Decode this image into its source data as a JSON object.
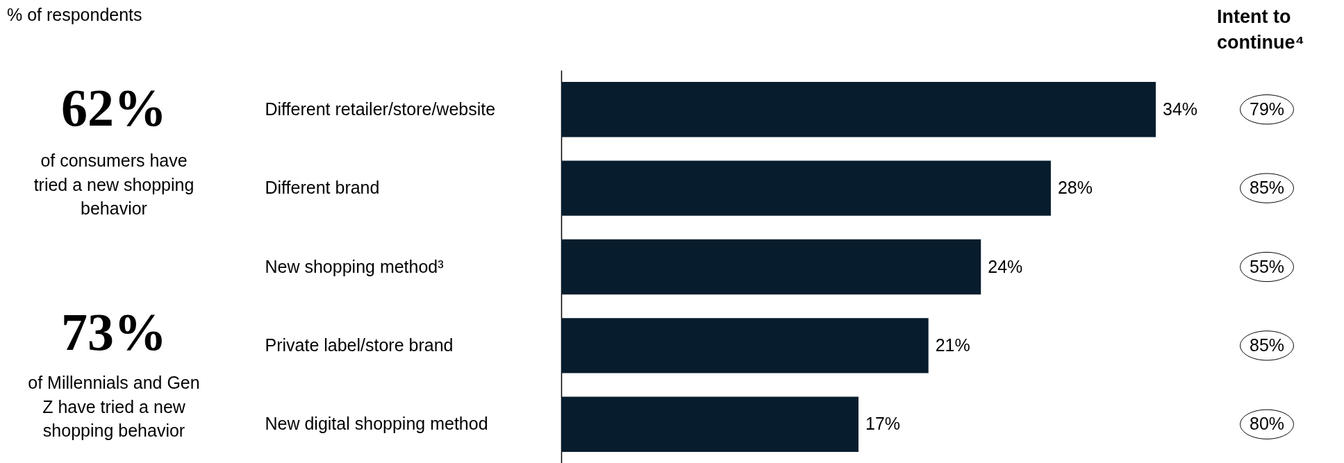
{
  "chart_data": {
    "type": "bar",
    "orientation": "horizontal",
    "categories": [
      "Different retailer/store/website",
      "Different brand",
      "New shopping method³",
      "Private label/store brand",
      "New digital shopping method"
    ],
    "values": [
      34,
      28,
      24,
      21,
      17
    ],
    "value_labels": [
      "34%",
      "28%",
      "24%",
      "21%",
      "17%"
    ],
    "color": "#071d2d",
    "annotations": [
      "% of respondents",
      "62%",
      "of consumers have tried a new shopping behavior",
      "73%",
      "of Millennials and Gen Z have tried a new shopping behavior",
      "Intent to continue⁴",
      "79%",
      "85%",
      "55%",
      "85%",
      "80%"
    ]
  }
}
